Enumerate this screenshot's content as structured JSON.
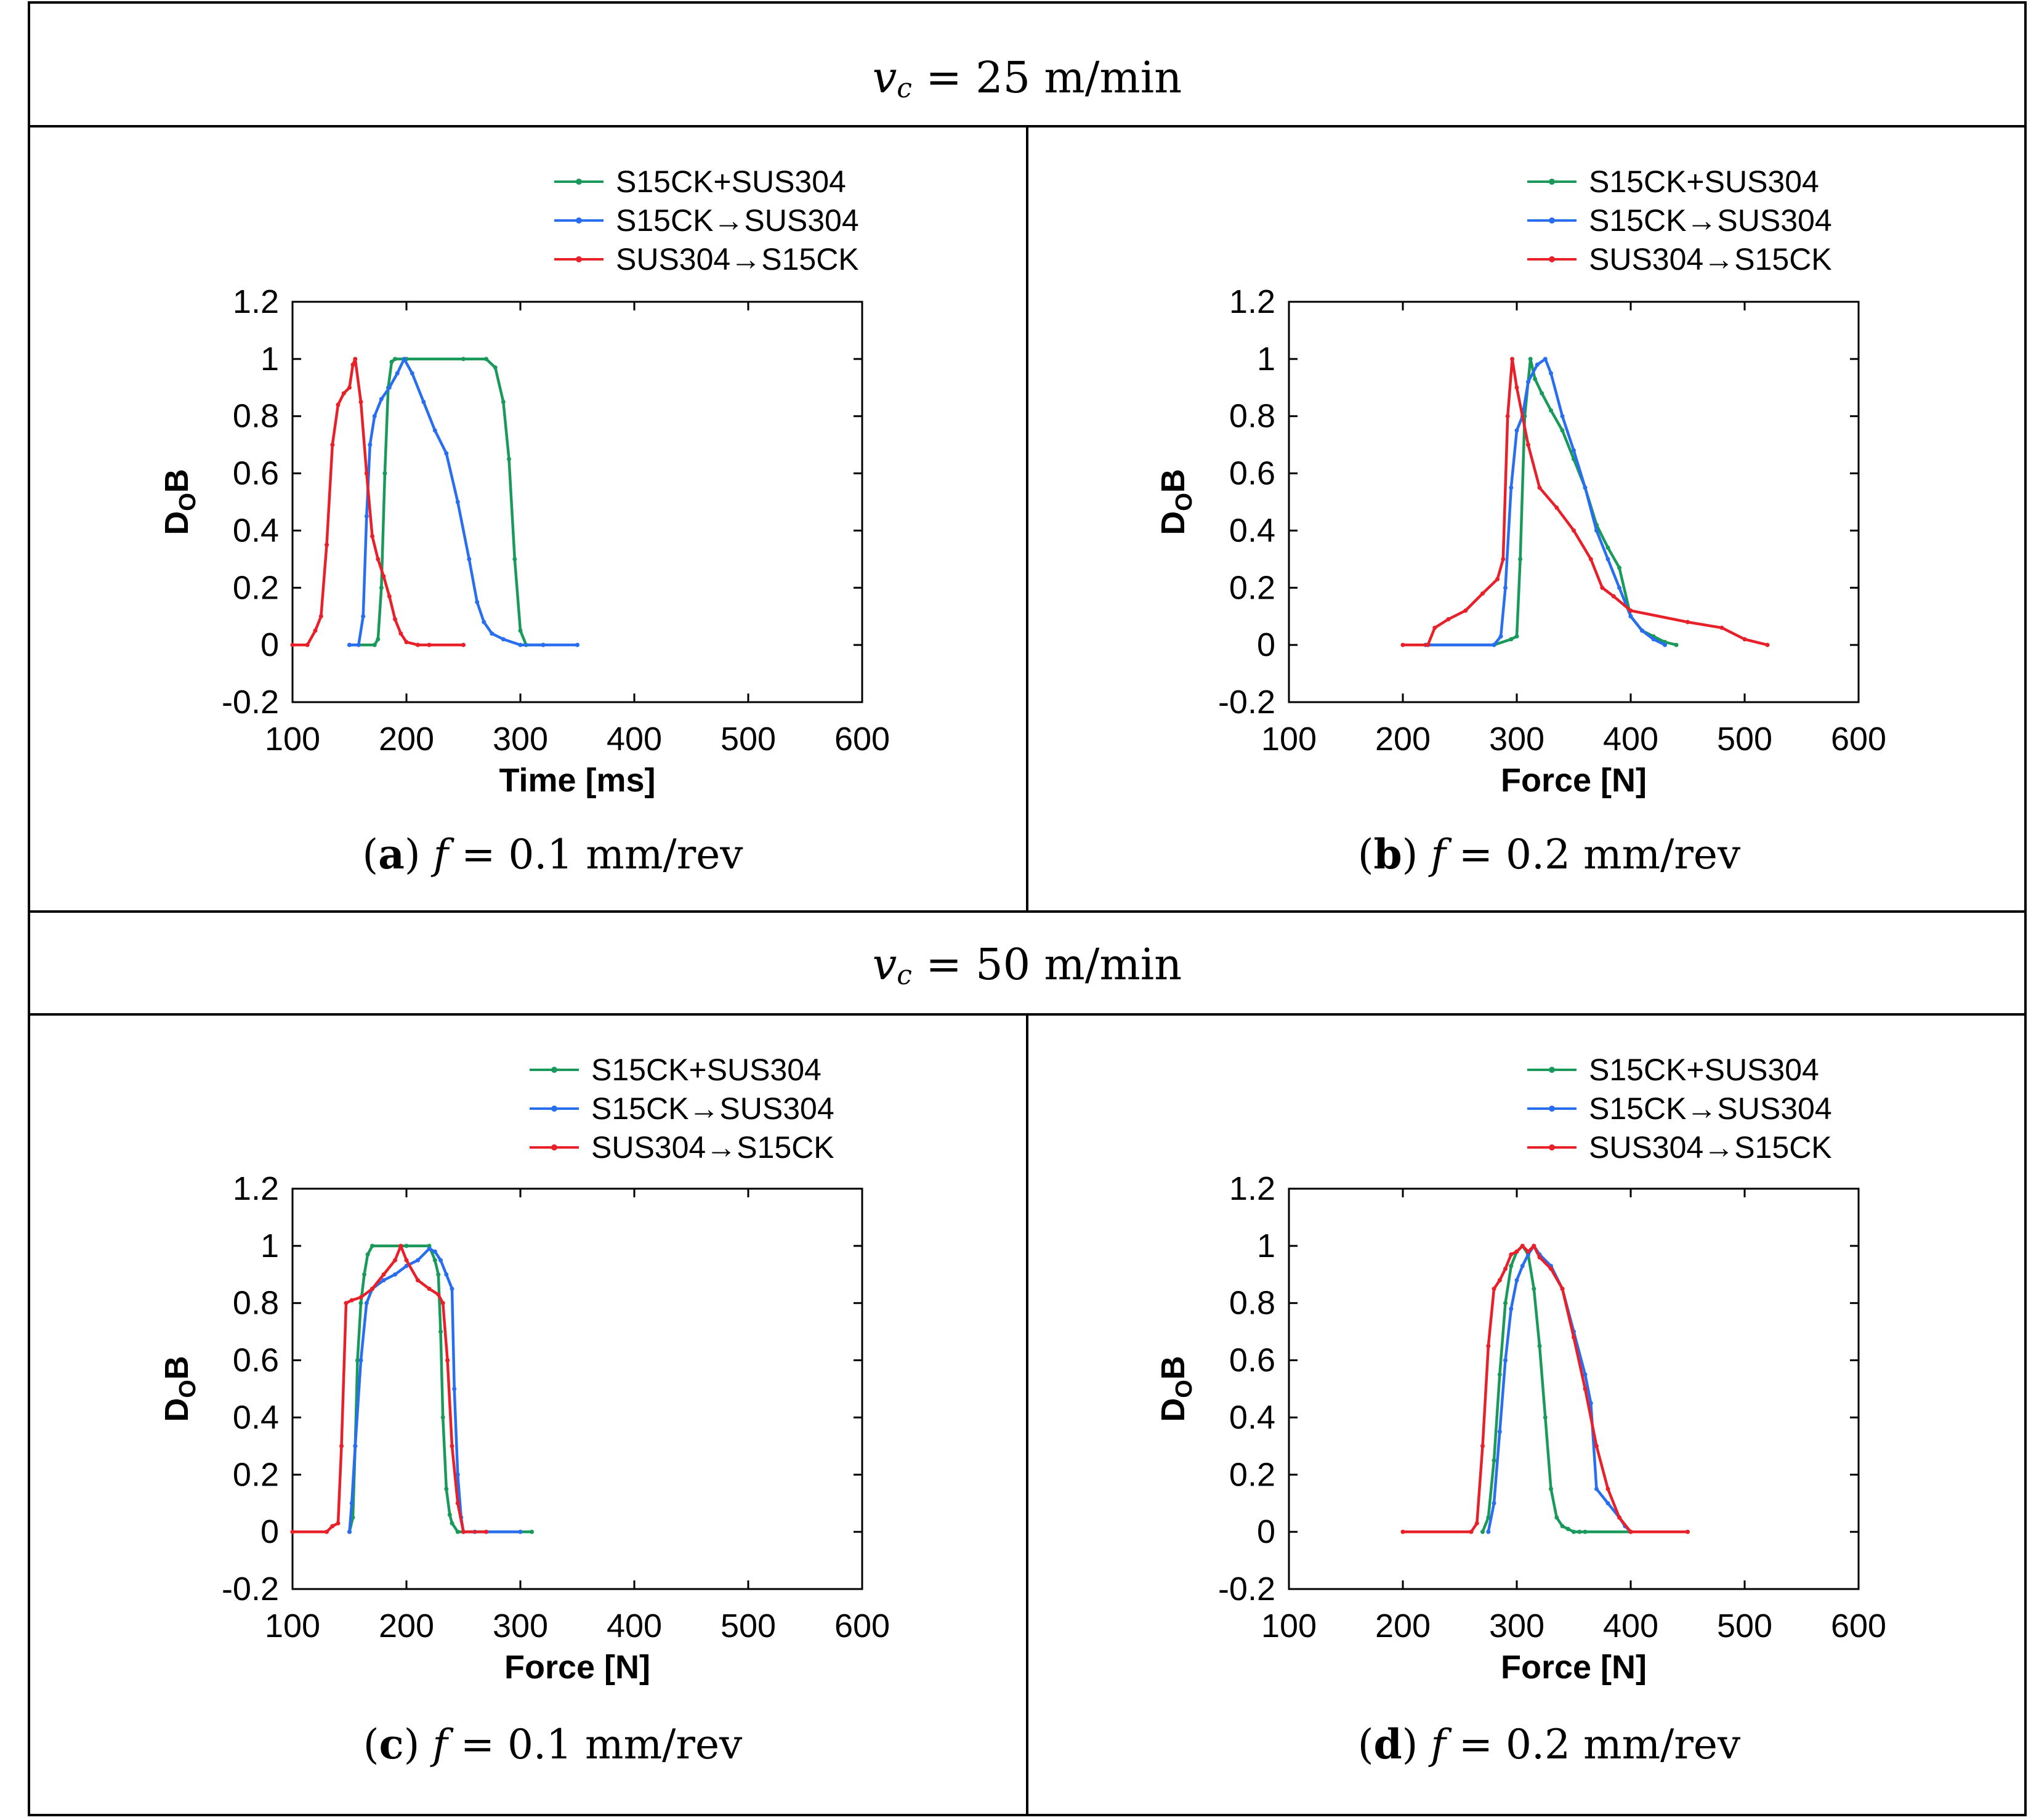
{
  "header_top": {
    "sym": "v",
    "sub": "c",
    "rest": " = 25 m/min"
  },
  "header_bottom": {
    "sym": "v",
    "sub": "c",
    "rest": " = 50 m/min"
  },
  "colors": {
    "S15CK+SUS304": "#1a9a5a",
    "S15CK→SUS304": "#2a6ef0",
    "SUS304→S15CK": "#e8202a"
  },
  "chart_data": [
    {
      "type": "line",
      "panel": "a",
      "caption": {
        "letter": "(a)",
        "f": "f",
        "rest": " = 0.1 mm/rev"
      },
      "xlabel": "Time [ms]",
      "ylabel": {
        "main": "D",
        "sub": "O",
        "tail": "B"
      },
      "xlim": [
        100,
        600
      ],
      "ylim": [
        -0.2,
        1.2
      ],
      "xticks": [
        "100",
        "200",
        "300",
        "400",
        "500",
        "600"
      ],
      "yticks": [
        "-0.2",
        "0",
        "0.2",
        "0.4",
        "0.6",
        "0.8",
        "1",
        "1.2"
      ],
      "legend": [
        "S15CK+SUS304",
        "S15CK→SUS304",
        "SUS304→S15CK"
      ],
      "series": [
        {
          "name": "S15CK+SUS304",
          "x": [
            150,
            172,
            175,
            178,
            181,
            184,
            187,
            190,
            200,
            250,
            270,
            278,
            285,
            290,
            295,
            300,
            305,
            320
          ],
          "y": [
            0,
            0,
            0.02,
            0.2,
            0.6,
            0.9,
            0.99,
            1,
            1,
            1,
            1,
            0.97,
            0.85,
            0.65,
            0.3,
            0.05,
            0,
            0
          ]
        },
        {
          "name": "S15CK→SUS304",
          "x": [
            150,
            158,
            162,
            165,
            168,
            172,
            178,
            185,
            192,
            198,
            205,
            215,
            225,
            235,
            245,
            255,
            262,
            268,
            275,
            285,
            300,
            320,
            350
          ],
          "y": [
            0,
            0,
            0.1,
            0.45,
            0.7,
            0.8,
            0.86,
            0.9,
            0.95,
            1,
            0.95,
            0.85,
            0.75,
            0.67,
            0.5,
            0.3,
            0.15,
            0.08,
            0.04,
            0.02,
            0,
            0,
            0
          ]
        },
        {
          "name": "SUS304→S15CK",
          "x": [
            100,
            113,
            120,
            125,
            130,
            135,
            140,
            145,
            150,
            153,
            155,
            160,
            165,
            170,
            175,
            180,
            185,
            190,
            195,
            200,
            210,
            220,
            250
          ],
          "y": [
            0,
            0,
            0.05,
            0.1,
            0.35,
            0.7,
            0.84,
            0.88,
            0.9,
            0.98,
            1,
            0.85,
            0.6,
            0.38,
            0.3,
            0.24,
            0.17,
            0.09,
            0.04,
            0.01,
            0,
            0,
            0
          ]
        }
      ]
    },
    {
      "type": "line",
      "panel": "b",
      "caption": {
        "letter": "(b)",
        "f": "f",
        "rest": " = 0.2 mm/rev"
      },
      "xlabel": "Force [N]",
      "ylabel": {
        "main": "D",
        "sub": "O",
        "tail": "B"
      },
      "xlim": [
        100,
        600
      ],
      "ylim": [
        -0.2,
        1.2
      ],
      "xticks": [
        "100",
        "200",
        "300",
        "400",
        "500",
        "600"
      ],
      "yticks": [
        "-0.2",
        "0",
        "0.2",
        "0.4",
        "0.6",
        "0.8",
        "1",
        "1.2"
      ],
      "legend": [
        "S15CK+SUS304",
        "S15CK→SUS304",
        "SUS304→S15CK"
      ],
      "series": [
        {
          "name": "S15CK+SUS304",
          "x": [
            220,
            280,
            295,
            300,
            303,
            307,
            312,
            316,
            322,
            330,
            340,
            350,
            360,
            370,
            380,
            390,
            400,
            410,
            420,
            430,
            440
          ],
          "y": [
            0,
            0,
            0.02,
            0.03,
            0.3,
            0.8,
            1,
            0.93,
            0.88,
            0.82,
            0.75,
            0.65,
            0.55,
            0.42,
            0.34,
            0.27,
            0.1,
            0.05,
            0.03,
            0.01,
            0
          ]
        },
        {
          "name": "S15CK→SUS304",
          "x": [
            220,
            280,
            286,
            290,
            295,
            300,
            305,
            310,
            318,
            325,
            330,
            340,
            350,
            360,
            370,
            380,
            390,
            400,
            410,
            420,
            430
          ],
          "y": [
            0,
            0,
            0.03,
            0.2,
            0.55,
            0.75,
            0.8,
            0.92,
            0.98,
            1,
            0.95,
            0.8,
            0.68,
            0.55,
            0.4,
            0.3,
            0.2,
            0.1,
            0.05,
            0.02,
            0
          ]
        },
        {
          "name": "SUS304→S15CK",
          "x": [
            200,
            222,
            228,
            240,
            255,
            270,
            283,
            288,
            292,
            296,
            300,
            310,
            320,
            335,
            350,
            365,
            375,
            385,
            400,
            450,
            480,
            500,
            520
          ],
          "y": [
            0,
            0,
            0.06,
            0.09,
            0.12,
            0.18,
            0.23,
            0.3,
            0.8,
            1,
            0.9,
            0.7,
            0.55,
            0.48,
            0.4,
            0.3,
            0.2,
            0.17,
            0.12,
            0.08,
            0.06,
            0.02,
            0
          ]
        }
      ]
    },
    {
      "type": "line",
      "panel": "c",
      "caption": {
        "letter": "(c)",
        "f": "f",
        "rest": " = 0.1 mm/rev"
      },
      "xlabel": "Force [N]",
      "ylabel": {
        "main": "D",
        "sub": "O",
        "tail": "B"
      },
      "xlim": [
        100,
        600
      ],
      "ylim": [
        -0.2,
        1.2
      ],
      "xticks": [
        "100",
        "200",
        "300",
        "400",
        "500",
        "600"
      ],
      "yticks": [
        "-0.2",
        "0",
        "0.2",
        "0.4",
        "0.6",
        "0.8",
        "1",
        "1.2"
      ],
      "legend": [
        "S15CK+SUS304",
        "S15CK→SUS304",
        "SUS304→S15CK"
      ],
      "series": [
        {
          "name": "S15CK+SUS304",
          "x": [
            150,
            153,
            155,
            157,
            160,
            163,
            166,
            170,
            200,
            220,
            225,
            228,
            230,
            232,
            235,
            238,
            240,
            245,
            250,
            310
          ],
          "y": [
            0,
            0.05,
            0.3,
            0.6,
            0.8,
            0.9,
            0.97,
            1,
            1,
            1,
            0.95,
            0.9,
            0.7,
            0.4,
            0.15,
            0.06,
            0.03,
            0,
            0,
            0
          ]
        },
        {
          "name": "S15CK→SUS304",
          "x": [
            150,
            152,
            155,
            160,
            165,
            170,
            180,
            190,
            200,
            210,
            220,
            225,
            230,
            235,
            240,
            242,
            245,
            248,
            250,
            260,
            300
          ],
          "y": [
            0,
            0.1,
            0.3,
            0.6,
            0.8,
            0.85,
            0.88,
            0.9,
            0.93,
            0.95,
            0.99,
            0.98,
            0.95,
            0.9,
            0.85,
            0.5,
            0.2,
            0.05,
            0,
            0,
            0
          ]
        },
        {
          "name": "SUS304→S15CK",
          "x": [
            100,
            130,
            135,
            140,
            143,
            147,
            152,
            160,
            170,
            180,
            190,
            195,
            200,
            210,
            220,
            228,
            232,
            236,
            240,
            245,
            250,
            270
          ],
          "y": [
            0,
            0,
            0.02,
            0.03,
            0.3,
            0.8,
            0.81,
            0.82,
            0.85,
            0.9,
            0.95,
            1,
            0.95,
            0.88,
            0.85,
            0.83,
            0.8,
            0.6,
            0.3,
            0.1,
            0,
            0
          ]
        }
      ]
    },
    {
      "type": "line",
      "panel": "d",
      "caption": {
        "letter": "(d)",
        "f": "f",
        "rest": " = 0.2 mm/rev"
      },
      "xlabel": "Force [N]",
      "ylabel": {
        "main": "D",
        "sub": "O",
        "tail": "B"
      },
      "xlim": [
        100,
        600
      ],
      "ylim": [
        -0.2,
        1.2
      ],
      "xticks": [
        "100",
        "200",
        "300",
        "400",
        "500",
        "600"
      ],
      "yticks": [
        "-0.2",
        "0",
        "0.2",
        "0.4",
        "0.6",
        "0.8",
        "1",
        "1.2"
      ],
      "legend": [
        "S15CK+SUS304",
        "S15CK→SUS304",
        "SUS304→S15CK"
      ],
      "series": [
        {
          "name": "S15CK+SUS304",
          "x": [
            270,
            275,
            280,
            285,
            290,
            295,
            300,
            305,
            310,
            315,
            320,
            325,
            330,
            335,
            340,
            345,
            350,
            355,
            360,
            400
          ],
          "y": [
            0,
            0.05,
            0.25,
            0.55,
            0.8,
            0.93,
            0.98,
            1,
            0.97,
            0.85,
            0.65,
            0.4,
            0.15,
            0.05,
            0.02,
            0.01,
            0,
            0,
            0,
            0
          ]
        },
        {
          "name": "S15CK→SUS304",
          "x": [
            275,
            280,
            285,
            290,
            295,
            300,
            305,
            310,
            315,
            320,
            330,
            340,
            350,
            360,
            365,
            370,
            380,
            390,
            395,
            400
          ],
          "y": [
            0,
            0.1,
            0.35,
            0.6,
            0.78,
            0.88,
            0.93,
            0.97,
            1,
            0.97,
            0.93,
            0.85,
            0.7,
            0.55,
            0.45,
            0.15,
            0.1,
            0.05,
            0.02,
            0
          ]
        },
        {
          "name": "SUS304→S15CK",
          "x": [
            200,
            260,
            265,
            270,
            275,
            280,
            285,
            290,
            295,
            300,
            305,
            310,
            315,
            320,
            330,
            340,
            350,
            360,
            370,
            380,
            390,
            400,
            450
          ],
          "y": [
            0,
            0,
            0.03,
            0.3,
            0.65,
            0.85,
            0.88,
            0.92,
            0.97,
            0.98,
            1,
            0.98,
            1,
            0.96,
            0.92,
            0.85,
            0.68,
            0.5,
            0.3,
            0.15,
            0.05,
            0,
            0
          ]
        }
      ]
    }
  ]
}
